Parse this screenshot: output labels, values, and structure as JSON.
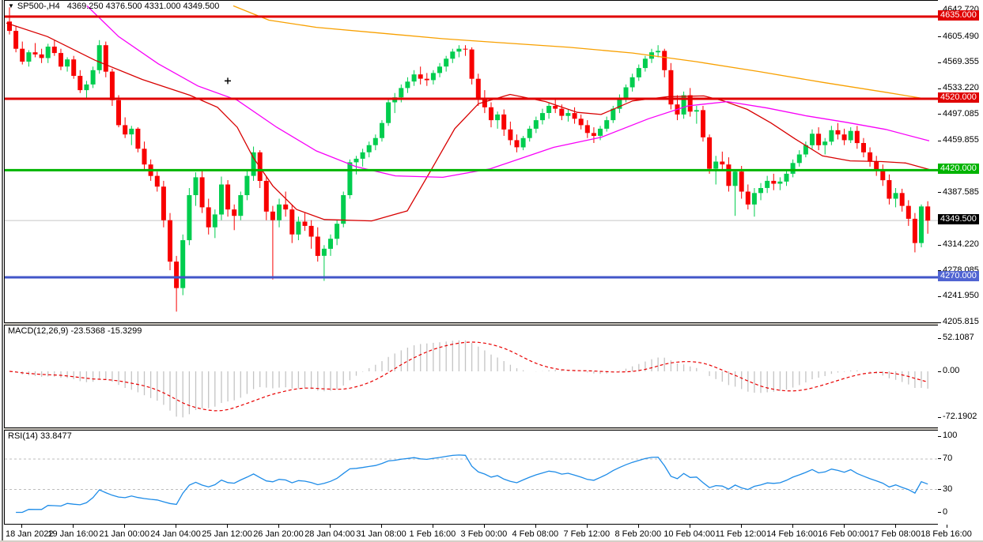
{
  "window": {
    "title_symbol": "SP500-,H4",
    "title_ohlc": "4369.250 4376.500 4331.000 4349.500"
  },
  "icons": {
    "symbol_dropdown": "▼"
  },
  "axis": {
    "price_ticks": [
      "4642.720",
      "4605.490",
      "4569.355",
      "4533.220",
      "4497.085",
      "4459.855",
      "4387.585",
      "4314.220",
      "4278.085",
      "4241.950",
      "4205.815"
    ],
    "time_labels": [
      "18 Jan 2022",
      "19 Jan 16:00",
      "21 Jan 00:00",
      "24 Jan 04:00",
      "25 Jan 12:00",
      "26 Jan 20:00",
      "28 Jan 04:00",
      "31 Jan 08:00",
      "1 Feb 16:00",
      "3 Feb 00:00",
      "4 Feb 08:00",
      "7 Feb 12:00",
      "8 Feb 20:00",
      "10 Feb 04:00",
      "11 Feb 12:00",
      "14 Feb 16:00",
      "16 Feb 00:00",
      "17 Feb 08:00",
      "18 Feb 16:00"
    ]
  },
  "chart_data": [
    {
      "type": "candlestick",
      "panel": "main",
      "symbol": "SP500-",
      "timeframe": "H4",
      "last_ohlc": {
        "open": 4369.25,
        "high": 4376.5,
        "low": 4331.0,
        "close": 4349.5
      },
      "colors": {
        "bull": "#00cd4e",
        "bear": "#f80000"
      },
      "levels": [
        {
          "price": 4349.5,
          "label": "4349.500",
          "line": "#c8c8c8",
          "badge": "#000000",
          "width": 1,
          "z": "under"
        },
        {
          "price": 4635.0,
          "label": "4635.000",
          "line": "#e00000",
          "badge": "#e00000",
          "width": 3,
          "z": "over"
        },
        {
          "price": 4520.0,
          "label": "4520.000",
          "line": "#e00000",
          "badge": "#e00000",
          "width": 3,
          "z": "over"
        },
        {
          "price": 4420.0,
          "label": "4420.000",
          "line": "#00b400",
          "badge": "#00b400",
          "width": 3,
          "z": "over"
        },
        {
          "price": 4270.0,
          "label": "4270.000",
          "line": "#4156c8",
          "badge": "#5064d2",
          "width": 3,
          "z": "over"
        }
      ],
      "marker": {
        "x": 288,
        "price": 4545
      },
      "overlays": [
        {
          "name": "ma-fast-red",
          "color": "#d80000",
          "points": [
            [
              8,
              4626
            ],
            [
              60,
              4607
            ],
            [
              120,
              4574
            ],
            [
              180,
              4547
            ],
            [
              240,
              4525
            ],
            [
              275,
              4508
            ],
            [
              300,
              4480
            ],
            [
              320,
              4438
            ],
            [
              345,
              4398
            ],
            [
              375,
              4365
            ],
            [
              410,
              4351
            ],
            [
              470,
              4349
            ],
            [
              515,
              4363
            ],
            [
              545,
              4420
            ],
            [
              575,
              4478
            ],
            [
              605,
              4513
            ],
            [
              645,
              4526
            ],
            [
              690,
              4516
            ],
            [
              730,
              4501
            ],
            [
              760,
              4498
            ],
            [
              800,
              4517
            ],
            [
              845,
              4523
            ],
            [
              890,
              4524
            ],
            [
              915,
              4517
            ],
            [
              945,
              4505
            ],
            [
              975,
              4486
            ],
            [
              1005,
              4464
            ],
            [
              1040,
              4440
            ],
            [
              1075,
              4433
            ],
            [
              1115,
              4432
            ],
            [
              1145,
              4430
            ],
            [
              1175,
              4421
            ]
          ]
        },
        {
          "name": "ma-mid-magenta",
          "color": "#f800f8",
          "points": [
            [
              110,
              4650
            ],
            [
              150,
              4607
            ],
            [
              200,
              4569
            ],
            [
              250,
              4538
            ],
            [
              300,
              4518
            ],
            [
              350,
              4480
            ],
            [
              400,
              4447
            ],
            [
              450,
              4425
            ],
            [
              500,
              4412
            ],
            [
              560,
              4410
            ],
            [
              620,
              4422
            ],
            [
              700,
              4452
            ],
            [
              760,
              4466
            ],
            [
              820,
              4492
            ],
            [
              870,
              4510
            ],
            [
              920,
              4516
            ],
            [
              970,
              4507
            ],
            [
              1020,
              4496
            ],
            [
              1070,
              4487
            ],
            [
              1120,
              4477
            ],
            [
              1175,
              4461
            ]
          ]
        },
        {
          "name": "ma-slow-orange",
          "color": "#f8a000",
          "points": [
            [
              295,
              4650
            ],
            [
              340,
              4630
            ],
            [
              400,
              4620
            ],
            [
              480,
              4612
            ],
            [
              560,
              4604
            ],
            [
              640,
              4598
            ],
            [
              720,
              4592
            ],
            [
              800,
              4584
            ],
            [
              880,
              4572
            ],
            [
              960,
              4558
            ],
            [
              1040,
              4543
            ],
            [
              1120,
              4529
            ],
            [
              1175,
              4519
            ]
          ]
        }
      ],
      "candles": [
        [
          4628,
          4648,
          4610,
          4615
        ],
        [
          4615,
          4622,
          4585,
          4590
        ],
        [
          4590,
          4600,
          4568,
          4572
        ],
        [
          4572,
          4588,
          4565,
          4585
        ],
        [
          4585,
          4598,
          4578,
          4582
        ],
        [
          4582,
          4590,
          4570,
          4577
        ],
        [
          4577,
          4597,
          4570,
          4593
        ],
        [
          4593,
          4602,
          4580,
          4584
        ],
        [
          4584,
          4590,
          4560,
          4565
        ],
        [
          4565,
          4578,
          4558,
          4575
        ],
        [
          4575,
          4580,
          4548,
          4552
        ],
        [
          4552,
          4560,
          4528,
          4532
        ],
        [
          4532,
          4545,
          4520,
          4540
        ],
        [
          4540,
          4565,
          4535,
          4560
        ],
        [
          4560,
          4602,
          4555,
          4595
        ],
        [
          4595,
          4600,
          4550,
          4558
        ],
        [
          4558,
          4562,
          4510,
          4518
        ],
        [
          4518,
          4525,
          4480,
          4483
        ],
        [
          4483,
          4494,
          4465,
          4470
        ],
        [
          4470,
          4482,
          4455,
          4478
        ],
        [
          4478,
          4480,
          4445,
          4450
        ],
        [
          4450,
          4460,
          4420,
          4428
        ],
        [
          4428,
          4435,
          4405,
          4412
        ],
        [
          4412,
          4418,
          4390,
          4397
        ],
        [
          4397,
          4405,
          4340,
          4350
        ],
        [
          4350,
          4360,
          4280,
          4292
        ],
        [
          4292,
          4300,
          4222,
          4255
        ],
        [
          4255,
          4330,
          4245,
          4322
        ],
        [
          4322,
          4395,
          4315,
          4385
        ],
        [
          4385,
          4417,
          4370,
          4410
        ],
        [
          4410,
          4420,
          4360,
          4368
        ],
        [
          4368,
          4380,
          4330,
          4340
        ],
        [
          4340,
          4365,
          4325,
          4358
        ],
        [
          4358,
          4411,
          4350,
          4400
        ],
        [
          4400,
          4406,
          4355,
          4365
        ],
        [
          4365,
          4372,
          4336,
          4356
        ],
        [
          4356,
          4390,
          4350,
          4385
        ],
        [
          4385,
          4420,
          4378,
          4412
        ],
        [
          4412,
          4453,
          4405,
          4445
        ],
        [
          4445,
          4448,
          4395,
          4405
        ],
        [
          4405,
          4412,
          4350,
          4362
        ],
        [
          4362,
          4370,
          4267,
          4350
        ],
        [
          4350,
          4380,
          4340,
          4372
        ],
        [
          4372,
          4390,
          4355,
          4365
        ],
        [
          4365,
          4372,
          4318,
          4330
        ],
        [
          4330,
          4355,
          4322,
          4348
        ],
        [
          4348,
          4360,
          4335,
          4342
        ],
        [
          4342,
          4350,
          4310,
          4327
        ],
        [
          4327,
          4340,
          4292,
          4300
        ],
        [
          4300,
          4315,
          4265,
          4310
        ],
        [
          4310,
          4330,
          4300,
          4324
        ],
        [
          4324,
          4350,
          4315,
          4345
        ],
        [
          4345,
          4390,
          4340,
          4385
        ],
        [
          4385,
          4435,
          4380,
          4431
        ],
        [
          4431,
          4440,
          4414,
          4436
        ],
        [
          4436,
          4450,
          4425,
          4445
        ],
        [
          4445,
          4460,
          4438,
          4455
        ],
        [
          4455,
          4470,
          4448,
          4465
        ],
        [
          4465,
          4490,
          4460,
          4486
        ],
        [
          4486,
          4520,
          4482,
          4515
        ],
        [
          4515,
          4528,
          4500,
          4522
        ],
        [
          4522,
          4540,
          4515,
          4535
        ],
        [
          4535,
          4550,
          4528,
          4544
        ],
        [
          4544,
          4560,
          4538,
          4554
        ],
        [
          4554,
          4565,
          4540,
          4548
        ],
        [
          4548,
          4556,
          4538,
          4546
        ],
        [
          4546,
          4560,
          4540,
          4556
        ],
        [
          4556,
          4570,
          4550,
          4565
        ],
        [
          4565,
          4580,
          4558,
          4576
        ],
        [
          4576,
          4590,
          4570,
          4586
        ],
        [
          4586,
          4595,
          4578,
          4590
        ],
        [
          4590,
          4595,
          4580,
          4589
        ],
        [
          4589,
          4592,
          4540,
          4548
        ],
        [
          4548,
          4555,
          4510,
          4520
        ],
        [
          4520,
          4532,
          4500,
          4508
        ],
        [
          4508,
          4515,
          4480,
          4490
        ],
        [
          4490,
          4502,
          4478,
          4498
        ],
        [
          4498,
          4505,
          4468,
          4477
        ],
        [
          4477,
          4488,
          4455,
          4462
        ],
        [
          4462,
          4470,
          4445,
          4452
        ],
        [
          4452,
          4468,
          4448,
          4465
        ],
        [
          4465,
          4482,
          4460,
          4478
        ],
        [
          4478,
          4495,
          4472,
          4490
        ],
        [
          4490,
          4506,
          4484,
          4500
        ],
        [
          4500,
          4515,
          4492,
          4510
        ],
        [
          4510,
          4521,
          4500,
          4506
        ],
        [
          4506,
          4512,
          4490,
          4496
        ],
        [
          4496,
          4505,
          4488,
          4500
        ],
        [
          4500,
          4508,
          4485,
          4492
        ],
        [
          4492,
          4498,
          4477,
          4483
        ],
        [
          4483,
          4490,
          4465,
          4472
        ],
        [
          4472,
          4480,
          4458,
          4468
        ],
        [
          4468,
          4482,
          4462,
          4478
        ],
        [
          4478,
          4495,
          4474,
          4490
        ],
        [
          4490,
          4510,
          4486,
          4506
        ],
        [
          4506,
          4526,
          4500,
          4521
        ],
        [
          4521,
          4540,
          4515,
          4536
        ],
        [
          4536,
          4555,
          4530,
          4550
        ],
        [
          4550,
          4568,
          4545,
          4563
        ],
        [
          4563,
          4580,
          4558,
          4576
        ],
        [
          4576,
          4590,
          4570,
          4585
        ],
        [
          4585,
          4595,
          4578,
          4587
        ],
        [
          4587,
          4590,
          4550,
          4560
        ],
        [
          4560,
          4570,
          4505,
          4512
        ],
        [
          4512,
          4525,
          4490,
          4498
        ],
        [
          4498,
          4530,
          4492,
          4525
        ],
        [
          4525,
          4535,
          4495,
          4502
        ],
        [
          4502,
          4510,
          4485,
          4504
        ],
        [
          4504,
          4510,
          4460,
          4466
        ],
        [
          4466,
          4470,
          4415,
          4422
        ],
        [
          4422,
          4440,
          4400,
          4432
        ],
        [
          4432,
          4446,
          4420,
          4428
        ],
        [
          4428,
          4438,
          4390,
          4398
        ],
        [
          4398,
          4420,
          4356,
          4418
        ],
        [
          4418,
          4426,
          4380,
          4390
        ],
        [
          4390,
          4400,
          4365,
          4372
        ],
        [
          4372,
          4395,
          4355,
          4388
        ],
        [
          4388,
          4402,
          4378,
          4395
        ],
        [
          4395,
          4412,
          4388,
          4405
        ],
        [
          4405,
          4415,
          4392,
          4401
        ],
        [
          4401,
          4410,
          4392,
          4404
        ],
        [
          4404,
          4420,
          4398,
          4415
        ],
        [
          4415,
          4435,
          4410,
          4430
        ],
        [
          4430,
          4448,
          4425,
          4442
        ],
        [
          4442,
          4460,
          4438,
          4455
        ],
        [
          4455,
          4477,
          4450,
          4471
        ],
        [
          4471,
          4480,
          4448,
          4455
        ],
        [
          4455,
          4465,
          4442,
          4460
        ],
        [
          4460,
          4482,
          4455,
          4476
        ],
        [
          4476,
          4486,
          4463,
          4470
        ],
        [
          4470,
          4478,
          4455,
          4462
        ],
        [
          4462,
          4480,
          4458,
          4475
        ],
        [
          4475,
          4482,
          4450,
          4458
        ],
        [
          4458,
          4465,
          4438,
          4445
        ],
        [
          4445,
          4452,
          4425,
          4432
        ],
        [
          4432,
          4440,
          4412,
          4420
        ],
        [
          4420,
          4428,
          4398,
          4406
        ],
        [
          4406,
          4414,
          4372,
          4380
        ],
        [
          4380,
          4395,
          4368,
          4388
        ],
        [
          4388,
          4394,
          4362,
          4370
        ],
        [
          4370,
          4378,
          4342,
          4352
        ],
        [
          4352,
          4360,
          4305,
          4318
        ],
        [
          4318,
          4372,
          4312,
          4369.25
        ],
        [
          4369.25,
          4376.5,
          4331,
          4349.5
        ]
      ]
    },
    {
      "type": "macd",
      "label": "MACD(12,26,9) -23.5368 -15.3299",
      "params": {
        "fast": 12,
        "slow": 26,
        "signal": 9
      },
      "values": {
        "macd": -23.5368,
        "signal": -15.3299
      },
      "y_ticks": [
        "52.1087",
        "0.00",
        "-72.1902"
      ],
      "colors": {
        "hist": "#c4c4c4",
        "signal": "#e80000"
      }
    },
    {
      "type": "rsi",
      "label": "RSI(14) 33.8477",
      "params": {
        "period": 14
      },
      "value": 33.8477,
      "levels": [
        70,
        30
      ],
      "y_ticks": [
        "100",
        "70",
        "30",
        "0"
      ],
      "colors": {
        "line": "#1e8ce8",
        "level": "#bdbdbd"
      }
    }
  ]
}
